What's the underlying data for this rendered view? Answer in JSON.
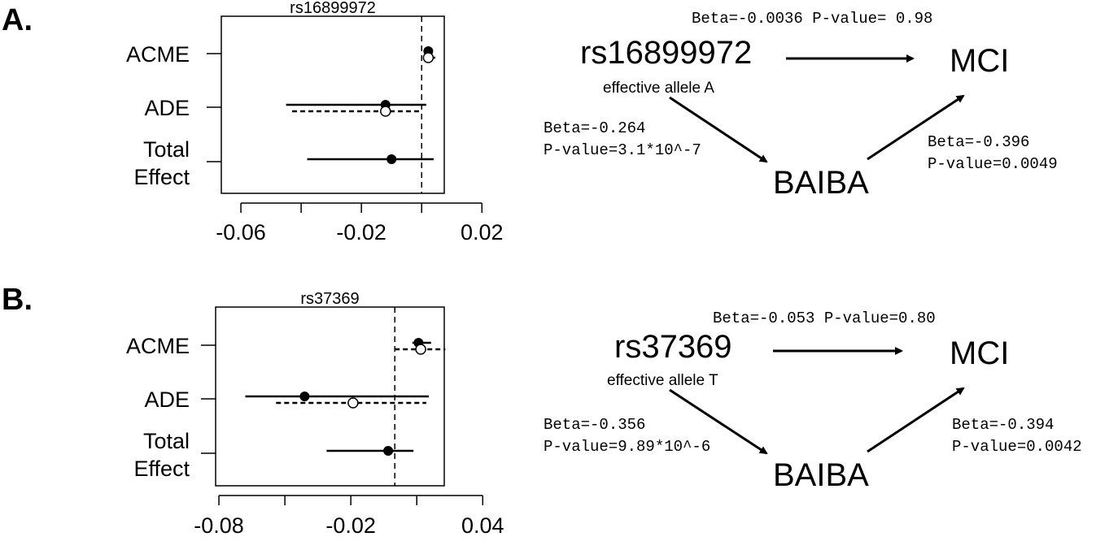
{
  "panels": [
    {
      "label": "A.",
      "chart_data": {
        "type": "forest",
        "title": "rs16899972",
        "categories": [
          "ACME",
          "ADE",
          "Total Effect"
        ],
        "category_lines": [
          [
            "ACME"
          ],
          [
            "ADE"
          ],
          [
            "Total",
            "Effect"
          ]
        ],
        "xticks": [
          "-0.06",
          "-0.02",
          "0.02"
        ],
        "xtick_values": [
          -0.06,
          -0.04,
          -0.02,
          0.0,
          0.02
        ],
        "xlim": [
          -0.0665,
          0.0075
        ],
        "reference_line": 0,
        "series": [
          {
            "style": "solid",
            "marker": "filled",
            "points": [
              {
                "category": "ACME",
                "estimate": 0.0022,
                "lower": 0.0008,
                "upper": 0.0037
              },
              {
                "category": "ADE",
                "estimate": -0.012,
                "lower": -0.045,
                "upper": 0.0015
              },
              {
                "category": "Total Effect",
                "estimate": -0.01,
                "lower": -0.038,
                "upper": 0.004
              }
            ]
          },
          {
            "style": "dashed",
            "marker": "open",
            "points": [
              {
                "category": "ACME",
                "estimate": 0.0022,
                "lower": 0.0005,
                "upper": 0.0045
              },
              {
                "category": "ADE",
                "estimate": -0.012,
                "lower": -0.043,
                "upper": -0.0005
              }
            ]
          }
        ]
      },
      "diagram": {
        "exposure": "rs16899972",
        "allele": "effective allele A",
        "mediator": "BAIBA",
        "outcome": "MCI",
        "direct": "Beta=-0.0036 P-value= 0.98",
        "a_beta": "Beta=-0.264",
        "a_p": "P-value=3.1*10^-7",
        "b_beta": "Beta=-0.396",
        "b_p": "P-value=0.0049"
      }
    },
    {
      "label": "B.",
      "chart_data": {
        "type": "forest",
        "title": "rs37369",
        "categories": [
          "ACME",
          "ADE",
          "Total Effect"
        ],
        "category_lines": [
          [
            "ACME"
          ],
          [
            "ADE"
          ],
          [
            "Total",
            "Effect"
          ]
        ],
        "xticks": [
          "-0.08",
          "-0.02",
          "0.04"
        ],
        "xtick_values": [
          -0.08,
          -0.05,
          -0.02,
          0.01,
          0.04
        ],
        "xlim": [
          -0.0815,
          0.0225
        ],
        "reference_line": 0,
        "series": [
          {
            "style": "solid",
            "marker": "filled",
            "points": [
              {
                "category": "ACME",
                "estimate": 0.0108,
                "lower": 0.008,
                "upper": 0.0165
              },
              {
                "category": "ADE",
                "estimate": -0.041,
                "lower": -0.068,
                "upper": 0.0155
              },
              {
                "category": "Total Effect",
                "estimate": -0.003,
                "lower": -0.031,
                "upper": 0.0085
              }
            ]
          },
          {
            "style": "dashed",
            "marker": "open",
            "points": [
              {
                "category": "ACME",
                "estimate": 0.0118,
                "lower": 0.0,
                "upper": 0.023
              },
              {
                "category": "ADE",
                "estimate": -0.019,
                "lower": -0.054,
                "upper": 0.0143
              }
            ]
          }
        ]
      },
      "diagram": {
        "exposure": "rs37369",
        "allele": "effective allele T",
        "mediator": "BAIBA",
        "outcome": "MCI",
        "direct": "Beta=-0.053 P-value=0.80",
        "a_beta": "Beta=-0.356",
        "a_p": "P-value=9.89*10^-6",
        "b_beta": "Beta=-0.394",
        "b_p": "P-value=0.0042"
      }
    }
  ]
}
